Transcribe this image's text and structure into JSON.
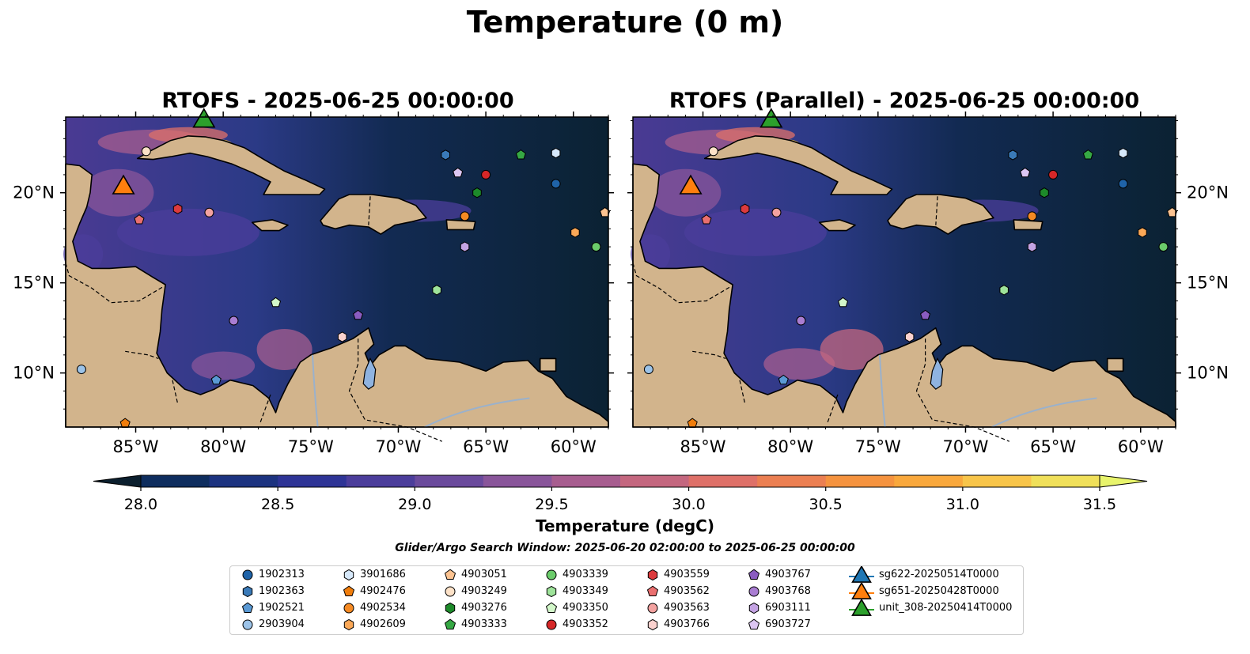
{
  "title": "Temperature (0 m)",
  "panels": [
    {
      "title": "RTOFS - 2025-06-25 00:00:00"
    },
    {
      "title": "RTOFS (Parallel) - 2025-06-25 00:00:00"
    }
  ],
  "lon_ticks": [
    "85°W",
    "80°W",
    "75°W",
    "70°W",
    "65°W",
    "60°W"
  ],
  "lat_ticks": [
    "20°N",
    "15°N",
    "10°N"
  ],
  "colorbar": {
    "label": "Temperature (degC)",
    "ticks": [
      "28.0",
      "28.5",
      "29.0",
      "29.5",
      "30.0",
      "30.5",
      "31.0",
      "31.5"
    ],
    "colors": [
      "#0b2233",
      "#0e2d5e",
      "#1c3380",
      "#2e3496",
      "#4b3d9b",
      "#6a4a9c",
      "#89559a",
      "#a75d8f",
      "#c4677f",
      "#de7068",
      "#eb7f52",
      "#f5933f",
      "#f9a83c",
      "#f8c54a",
      "#f0e05a"
    ],
    "under_color": "#0b1f2e",
    "over_color": "#e8f46c"
  },
  "search_window": "Glider/Argo Search Window: 2025-06-20 02:00:00 to 2025-06-25 00:00:00",
  "legend": [
    {
      "label": "1902313",
      "shape": "circle",
      "color": "#1f63a8"
    },
    {
      "label": "1902363",
      "shape": "hexagon",
      "color": "#3a7ab8"
    },
    {
      "label": "1902521",
      "shape": "pentagon",
      "color": "#5a99d4"
    },
    {
      "label": "2903904",
      "shape": "circle",
      "color": "#9cc3e8"
    },
    {
      "label": "3901686",
      "shape": "hexagon",
      "color": "#d6e8fa"
    },
    {
      "label": "4902476",
      "shape": "pentagon",
      "color": "#f07d0c"
    },
    {
      "label": "4902534",
      "shape": "circle",
      "color": "#f58a23"
    },
    {
      "label": "4902609",
      "shape": "hexagon",
      "color": "#fba857"
    },
    {
      "label": "4903051",
      "shape": "pentagon",
      "color": "#fcc391"
    },
    {
      "label": "4903249",
      "shape": "circle",
      "color": "#fde2c8"
    },
    {
      "label": "4903276",
      "shape": "hexagon",
      "color": "#1d8a2a"
    },
    {
      "label": "4903333",
      "shape": "pentagon",
      "color": "#36a844"
    },
    {
      "label": "4903339",
      "shape": "circle",
      "color": "#6bcc6b"
    },
    {
      "label": "4903349",
      "shape": "hexagon",
      "color": "#9ee39a"
    },
    {
      "label": "4903350",
      "shape": "pentagon",
      "color": "#d2f7c9"
    },
    {
      "label": "4903352",
      "shape": "circle",
      "color": "#d62728"
    },
    {
      "label": "4903559",
      "shape": "hexagon",
      "color": "#dc3a3d"
    },
    {
      "label": "4903562",
      "shape": "pentagon",
      "color": "#ea6f6f"
    },
    {
      "label": "4903563",
      "shape": "circle",
      "color": "#f3a2a0"
    },
    {
      "label": "4903766",
      "shape": "hexagon",
      "color": "#fbd2cf"
    },
    {
      "label": "4903767",
      "shape": "pentagon",
      "color": "#8a5cc0"
    },
    {
      "label": "4903768",
      "shape": "circle",
      "color": "#a97dd2"
    },
    {
      "label": "6903111",
      "shape": "hexagon",
      "color": "#c4a3e3"
    },
    {
      "label": "6903727",
      "shape": "pentagon",
      "color": "#dcc6f2"
    },
    {
      "label": "sg622-20250514T0000",
      "shape": "triangle-line",
      "color": "#1f77b4"
    },
    {
      "label": "sg651-20250428T0000",
      "shape": "triangle-line",
      "color": "#ff7f0e"
    },
    {
      "label": "unit_308-20250414T0000",
      "shape": "triangle-line",
      "color": "#2ca02c"
    }
  ],
  "map_extent": {
    "lon": [
      -89,
      -58
    ],
    "lat": [
      7,
      24.2
    ]
  },
  "floats": [
    {
      "id": "4903249",
      "lon": -84.4,
      "lat": 22.3
    },
    {
      "id": "1902363",
      "lon": -67.3,
      "lat": 22.1
    },
    {
      "id": "3901686",
      "lon": -61.0,
      "lat": 22.2
    },
    {
      "id": "4903333",
      "lon": -63.0,
      "lat": 22.1
    },
    {
      "id": "6903727",
      "lon": -66.6,
      "lat": 21.1
    },
    {
      "id": "4903352",
      "lon": -65.0,
      "lat": 21.0
    },
    {
      "id": "1902313",
      "lon": -61.0,
      "lat": 20.5
    },
    {
      "id": "4903276",
      "lon": -65.5,
      "lat": 20.0
    },
    {
      "id": "4903559",
      "lon": -82.6,
      "lat": 19.1
    },
    {
      "id": "4903563",
      "lon": -80.8,
      "lat": 18.9
    },
    {
      "id": "4902534",
      "lon": -66.2,
      "lat": 18.7
    },
    {
      "id": "4903562",
      "lon": -84.8,
      "lat": 18.5
    },
    {
      "id": "4903051",
      "lon": -58.2,
      "lat": 18.9
    },
    {
      "id": "4902609",
      "lon": -59.9,
      "lat": 17.8
    },
    {
      "id": "4903339",
      "lon": -58.7,
      "lat": 17.0
    },
    {
      "id": "6903111",
      "lon": -66.2,
      "lat": 17.0
    },
    {
      "id": "4903349",
      "lon": -67.8,
      "lat": 14.6
    },
    {
      "id": "4903350",
      "lon": -77.0,
      "lat": 13.9
    },
    {
      "id": "4903767",
      "lon": -72.3,
      "lat": 13.2
    },
    {
      "id": "4903768",
      "lon": -79.4,
      "lat": 12.9
    },
    {
      "id": "4903766",
      "lon": -73.2,
      "lat": 12.0
    },
    {
      "id": "2903904",
      "lon": -88.1,
      "lat": 10.2
    },
    {
      "id": "1902521",
      "lon": -80.4,
      "lat": 9.6
    },
    {
      "id": "4902476",
      "lon": -85.6,
      "lat": 7.2
    }
  ],
  "gliders": [
    {
      "id": "sg651-20250428T0000",
      "lon": -85.7,
      "lat": 20.4
    },
    {
      "id": "unit_308-20250414T0000",
      "lon": -81.1,
      "lat": 24.1
    }
  ]
}
